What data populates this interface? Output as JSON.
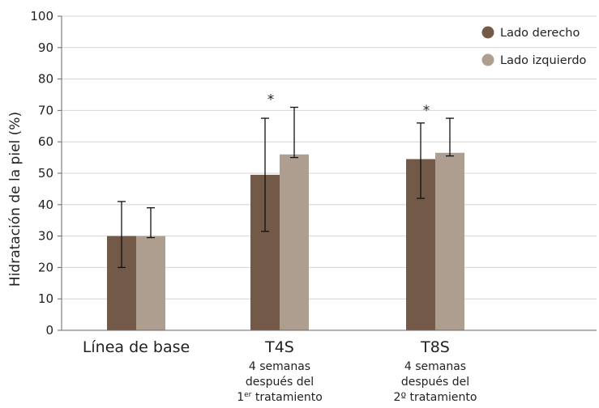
{
  "chart_data": {
    "type": "bar",
    "ylabel": "Hidratación de la piel (%)",
    "xlabel": "",
    "title": "",
    "ylim": [
      0,
      100
    ],
    "yticks": [
      0,
      10,
      20,
      30,
      40,
      50,
      60,
      70,
      80,
      90,
      100
    ],
    "grid": true,
    "legend_position": "top-right",
    "categories": [
      {
        "label": "Línea de base",
        "sub": []
      },
      {
        "label": "T4S",
        "sub": [
          "4 semanas",
          "después del",
          "1er tratamiento"
        ]
      },
      {
        "label": "T8S",
        "sub": [
          "4 semanas",
          "después del",
          "2º tratamiento"
        ]
      }
    ],
    "series": [
      {
        "name": "Lado derecho",
        "color": "#735a48",
        "values": [
          30,
          49.5,
          54.5
        ],
        "error_low": [
          20,
          31.5,
          42
        ],
        "error_high": [
          41,
          67.5,
          66
        ]
      },
      {
        "name": "Lado izquierdo",
        "color": "#ad9e90",
        "values": [
          30,
          56,
          56.5
        ],
        "error_low": [
          29.5,
          55,
          55.5
        ],
        "error_high": [
          39,
          71,
          67.5
        ]
      }
    ],
    "annotations": [
      {
        "category": 1,
        "text": "*"
      },
      {
        "category": 2,
        "text": "*"
      }
    ]
  }
}
